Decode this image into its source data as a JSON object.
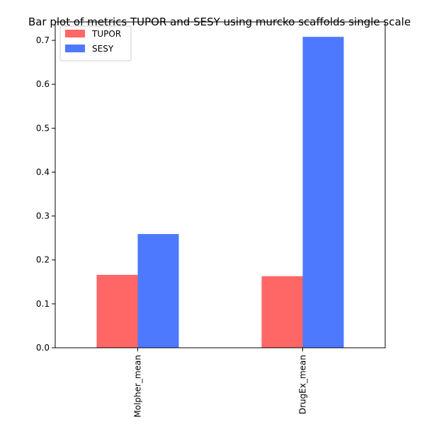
{
  "chart_data": {
    "type": "bar",
    "title": "Bar plot of metrics TUPOR and SESY using murcko scaffolds single scale",
    "categories": [
      "Molpher_mean",
      "DrugEx_mean"
    ],
    "series": [
      {
        "name": "TUPOR",
        "values": [
          0.166,
          0.163
        ],
        "color": "#ff6666"
      },
      {
        "name": "SESY",
        "values": [
          0.259,
          0.708
        ],
        "color": "#4d79ff"
      }
    ],
    "xlabel": "",
    "ylabel": "",
    "ylim": [
      0,
      0.742
    ],
    "yticks": [
      0.0,
      0.1,
      0.2,
      0.3,
      0.4,
      0.5,
      0.6,
      0.7
    ],
    "ytick_labels": [
      "0.0",
      "0.1",
      "0.2",
      "0.3",
      "0.4",
      "0.5",
      "0.6",
      "0.7"
    ],
    "grid": false,
    "legend_position": "top-left"
  }
}
